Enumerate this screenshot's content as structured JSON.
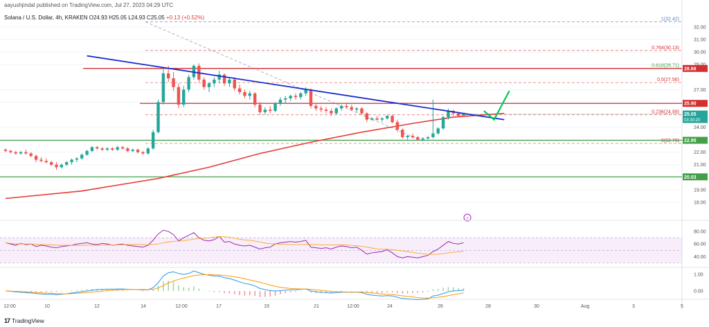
{
  "header": {
    "publisher": "aayushjindal published on TradingView.com, Jul 27, 2023 04:29 UTC"
  },
  "symbol": {
    "name": "Solana / U.S. Dollar, 4h, KRAKEN",
    "ohlc": "O24.93 H25.05 L24.93 C25.05",
    "change": "+0.13 (+0.52%)"
  },
  "brand": {
    "logo": "17",
    "name": "TradingView"
  },
  "colors": {
    "up": "#26a69a",
    "down": "#ef5350",
    "ma": "#e53935",
    "trend": "#1a2bcc",
    "support": "#43a047",
    "fib": "#d32f2f",
    "rsi": "#9c27b0",
    "rsi_ma": "#f9a825",
    "macd": "#2196f3",
    "signal": "#ff9800"
  },
  "chart_data": {
    "type": "candlestick",
    "price_axis": {
      "min": 17,
      "max": 32.5,
      "ticks": [
        "32.00",
        "31.00",
        "30.00",
        "29.00",
        "27.00",
        "26.00",
        "24.00",
        "23.00",
        "22.00",
        "21.00",
        "20.00",
        "19.00",
        "18.00"
      ]
    },
    "time_axis": {
      "labels": [
        "12:00",
        "10",
        "12",
        "14",
        "12:00",
        "17",
        "19",
        "21",
        "12:00",
        "24",
        "26",
        "28",
        "30",
        "Aug",
        "3",
        "5"
      ]
    },
    "candles": [
      [
        22.2,
        22.3,
        22.0,
        22.1
      ],
      [
        22.1,
        22.2,
        21.9,
        22.0
      ],
      [
        22.0,
        22.1,
        21.8,
        21.9
      ],
      [
        21.9,
        22.1,
        21.8,
        22.0
      ],
      [
        22.0,
        22.2,
        21.8,
        21.9
      ],
      [
        21.9,
        22.0,
        21.6,
        21.7
      ],
      [
        21.7,
        21.8,
        21.2,
        21.4
      ],
      [
        21.4,
        21.6,
        21.2,
        21.3
      ],
      [
        21.3,
        21.5,
        21.1,
        21.2
      ],
      [
        21.2,
        21.3,
        20.9,
        21.0
      ],
      [
        21.0,
        21.2,
        20.6,
        20.8
      ],
      [
        20.8,
        21.1,
        20.7,
        21.0
      ],
      [
        21.0,
        21.3,
        20.9,
        21.2
      ],
      [
        21.2,
        21.5,
        21.0,
        21.4
      ],
      [
        21.4,
        21.6,
        21.2,
        21.5
      ],
      [
        21.5,
        21.9,
        21.4,
        21.8
      ],
      [
        21.8,
        22.2,
        21.7,
        22.1
      ],
      [
        22.1,
        22.5,
        22.0,
        22.4
      ],
      [
        22.4,
        22.5,
        22.2,
        22.3
      ],
      [
        22.3,
        22.4,
        22.1,
        22.2
      ],
      [
        22.2,
        22.4,
        22.1,
        22.3
      ],
      [
        22.3,
        22.4,
        22.1,
        22.2
      ],
      [
        22.2,
        22.5,
        22.1,
        22.4
      ],
      [
        22.4,
        22.5,
        22.2,
        22.3
      ],
      [
        22.3,
        22.4,
        22.0,
        22.1
      ],
      [
        22.1,
        22.3,
        22.0,
        22.2
      ],
      [
        22.2,
        22.3,
        21.9,
        22.0
      ],
      [
        22.0,
        22.1,
        21.8,
        21.9
      ],
      [
        21.9,
        22.4,
        21.8,
        22.3
      ],
      [
        22.3,
        23.8,
        22.2,
        23.6
      ],
      [
        23.6,
        26.2,
        23.5,
        26.0
      ],
      [
        26.0,
        28.8,
        25.8,
        28.3
      ],
      [
        28.3,
        28.9,
        27.6,
        27.9
      ],
      [
        27.9,
        28.4,
        26.9,
        27.2
      ],
      [
        27.2,
        27.5,
        25.5,
        25.8
      ],
      [
        25.8,
        27.3,
        25.6,
        27.0
      ],
      [
        27.0,
        28.2,
        26.8,
        28.0
      ],
      [
        28.0,
        29.0,
        27.8,
        28.9
      ],
      [
        28.9,
        29.1,
        27.6,
        27.8
      ],
      [
        27.8,
        28.0,
        27.0,
        27.2
      ],
      [
        27.2,
        27.6,
        26.8,
        27.5
      ],
      [
        27.5,
        28.0,
        27.2,
        27.8
      ],
      [
        27.8,
        28.5,
        27.5,
        28.2
      ],
      [
        28.2,
        28.3,
        27.3,
        27.5
      ],
      [
        27.5,
        28.0,
        27.2,
        27.8
      ],
      [
        27.8,
        28.0,
        26.9,
        27.1
      ],
      [
        27.1,
        27.4,
        26.6,
        26.8
      ],
      [
        26.8,
        27.0,
        26.3,
        26.5
      ],
      [
        26.5,
        26.9,
        26.2,
        26.7
      ],
      [
        26.7,
        26.8,
        25.6,
        25.8
      ],
      [
        25.8,
        26.0,
        25.0,
        25.2
      ],
      [
        25.2,
        25.6,
        25.0,
        25.4
      ],
      [
        25.4,
        25.7,
        25.1,
        25.3
      ],
      [
        25.3,
        26.0,
        25.2,
        25.9
      ],
      [
        25.9,
        26.4,
        25.7,
        26.2
      ],
      [
        26.2,
        26.5,
        25.9,
        26.3
      ],
      [
        26.3,
        26.6,
        26.1,
        26.5
      ],
      [
        26.5,
        26.7,
        26.2,
        26.4
      ],
      [
        26.4,
        26.8,
        26.2,
        26.7
      ],
      [
        26.7,
        27.2,
        26.5,
        27.0
      ],
      [
        27.0,
        27.1,
        25.5,
        25.7
      ],
      [
        25.7,
        25.9,
        25.3,
        25.5
      ],
      [
        25.5,
        25.7,
        25.2,
        25.4
      ],
      [
        25.4,
        25.6,
        25.1,
        25.3
      ],
      [
        25.3,
        25.5,
        24.9,
        25.1
      ],
      [
        25.1,
        25.6,
        25.0,
        25.5
      ],
      [
        25.5,
        25.8,
        25.3,
        25.7
      ],
      [
        25.7,
        25.9,
        25.5,
        25.6
      ],
      [
        25.6,
        25.8,
        25.3,
        25.4
      ],
      [
        25.4,
        25.6,
        25.2,
        25.5
      ],
      [
        25.5,
        25.6,
        25.0,
        25.1
      ],
      [
        25.1,
        25.2,
        24.4,
        24.6
      ],
      [
        24.6,
        24.8,
        24.5,
        24.7
      ],
      [
        24.7,
        24.9,
        24.5,
        24.6
      ],
      [
        24.6,
        24.8,
        24.4,
        24.7
      ],
      [
        24.7,
        25.0,
        24.6,
        24.9
      ],
      [
        24.9,
        25.0,
        24.3,
        24.4
      ],
      [
        24.4,
        24.6,
        23.6,
        23.8
      ],
      [
        23.8,
        23.9,
        23.1,
        23.2
      ],
      [
        23.2,
        23.4,
        23.0,
        23.3
      ],
      [
        23.3,
        23.5,
        23.1,
        23.2
      ],
      [
        23.2,
        23.3,
        22.9,
        23.0
      ],
      [
        23.0,
        23.2,
        22.9,
        23.1
      ],
      [
        23.1,
        23.3,
        23.0,
        23.2
      ],
      [
        23.2,
        26.2,
        23.1,
        23.5
      ],
      [
        23.5,
        24.0,
        23.4,
        23.9
      ],
      [
        23.9,
        24.9,
        23.8,
        24.8
      ],
      [
        24.8,
        25.5,
        24.6,
        25.3
      ],
      [
        25.3,
        25.4,
        24.9,
        25.1
      ],
      [
        25.1,
        25.2,
        24.8,
        24.9
      ],
      [
        24.93,
        25.05,
        24.93,
        25.05
      ]
    ],
    "horizontal_levels": [
      {
        "price": 28.69,
        "label": "28.69",
        "color": "#d32f2f"
      },
      {
        "price": 25.9,
        "label": "25.90",
        "color": "#d32f2f"
      },
      {
        "price": 22.95,
        "label": "22.95",
        "color": "#43a047"
      },
      {
        "price": 20.03,
        "label": "20.03",
        "color": "#43a047"
      }
    ],
    "fibonacci": [
      {
        "ratio": "1",
        "price": 32.42,
        "label": "1(32.42)"
      },
      {
        "ratio": "0.764",
        "price": 30.13,
        "label": "0.764(30.13)"
      },
      {
        "ratio": "0.618",
        "price": 28.71,
        "label": "0.618(28.71)"
      },
      {
        "ratio": "0.5",
        "price": 27.56,
        "label": "0.5(27.56)"
      },
      {
        "ratio": "0.236",
        "price": 24.99,
        "label": "0.236(24.99)"
      },
      {
        "ratio": "0",
        "price": 22.7,
        "label": "0(22.70)"
      }
    ],
    "current_price": {
      "price": 25.05,
      "label": "25.05",
      "countdown": "03:30:20"
    },
    "trend_line": {
      "from": [
        16,
        29.7
      ],
      "to": [
        98,
        24.6
      ]
    },
    "moving_average": [
      [
        0,
        18.3
      ],
      [
        15,
        18.9
      ],
      [
        30,
        19.9
      ],
      [
        40,
        20.8
      ],
      [
        50,
        21.9
      ],
      [
        60,
        22.8
      ],
      [
        70,
        23.6
      ],
      [
        80,
        24.3
      ],
      [
        88,
        24.8
      ],
      [
        98,
        25.1
      ]
    ],
    "projection": {
      "from": [
        94,
        25.3
      ],
      "mid": [
        96,
        24.6
      ],
      "to": [
        99,
        26.9
      ]
    },
    "rsi": {
      "ticks": [
        "80.00",
        "60.00",
        "40.00"
      ],
      "values": [
        62,
        60,
        58,
        61,
        59,
        60,
        56,
        58,
        57,
        55,
        54,
        56,
        57,
        58,
        60,
        61,
        62,
        60,
        59,
        61,
        60,
        58,
        59,
        60,
        58,
        57,
        56,
        55,
        58,
        66,
        76,
        82,
        80,
        75,
        65,
        70,
        74,
        78,
        70,
        66,
        65,
        67,
        72,
        63,
        64,
        60,
        58,
        57,
        58,
        55,
        52,
        54,
        55,
        60,
        62,
        63,
        64,
        63,
        64,
        66,
        55,
        54,
        53,
        54,
        52,
        55,
        57,
        56,
        54,
        55,
        50,
        44,
        46,
        47,
        48,
        51,
        46,
        40,
        38,
        40,
        39,
        38,
        40,
        42,
        48,
        52,
        58,
        64,
        61,
        60,
        62
      ]
    },
    "macd": {
      "ticks": [
        "1.00",
        "0.00"
      ],
      "macd": [
        0.0,
        -0.02,
        -0.05,
        -0.08,
        -0.1,
        -0.12,
        -0.15,
        -0.18,
        -0.2,
        -0.2,
        -0.22,
        -0.2,
        -0.16,
        -0.12,
        -0.08,
        -0.04,
        0.0,
        0.05,
        0.08,
        0.1,
        0.11,
        0.11,
        0.12,
        0.12,
        0.1,
        0.09,
        0.08,
        0.06,
        0.07,
        0.2,
        0.5,
        0.9,
        1.1,
        1.15,
        1.05,
        1.0,
        1.05,
        1.2,
        1.1,
        1.0,
        0.95,
        0.9,
        0.9,
        0.8,
        0.75,
        0.65,
        0.55,
        0.45,
        0.4,
        0.3,
        0.15,
        0.08,
        0.02,
        0.0,
        0.02,
        0.05,
        0.07,
        0.08,
        0.1,
        0.12,
        0.0,
        -0.05,
        -0.08,
        -0.1,
        -0.12,
        -0.1,
        -0.08,
        -0.07,
        -0.08,
        -0.07,
        -0.1,
        -0.2,
        -0.25,
        -0.28,
        -0.3,
        -0.28,
        -0.3,
        -0.38,
        -0.45,
        -0.48,
        -0.5,
        -0.52,
        -0.5,
        -0.48,
        -0.3,
        -0.25,
        -0.15,
        -0.05,
        0.0,
        0.02,
        0.05
      ],
      "signal": [
        0.0,
        -0.01,
        -0.02,
        -0.04,
        -0.05,
        -0.07,
        -0.09,
        -0.11,
        -0.13,
        -0.14,
        -0.16,
        -0.17,
        -0.17,
        -0.16,
        -0.14,
        -0.12,
        -0.1,
        -0.07,
        -0.04,
        -0.01,
        0.02,
        0.04,
        0.06,
        0.08,
        0.09,
        0.09,
        0.09,
        0.09,
        0.08,
        0.1,
        0.18,
        0.32,
        0.48,
        0.6,
        0.7,
        0.78,
        0.85,
        0.92,
        0.96,
        0.98,
        0.98,
        0.97,
        0.96,
        0.93,
        0.9,
        0.85,
        0.8,
        0.73,
        0.66,
        0.6,
        0.52,
        0.44,
        0.36,
        0.28,
        0.22,
        0.18,
        0.15,
        0.13,
        0.12,
        0.12,
        0.1,
        0.07,
        0.04,
        0.01,
        -0.02,
        -0.04,
        -0.05,
        -0.06,
        -0.06,
        -0.06,
        -0.07,
        -0.09,
        -0.12,
        -0.15,
        -0.18,
        -0.2,
        -0.22,
        -0.25,
        -0.29,
        -0.33,
        -0.36,
        -0.4,
        -0.42,
        -0.43,
        -0.41,
        -0.38,
        -0.34,
        -0.28,
        -0.22,
        -0.17,
        -0.12
      ]
    }
  }
}
